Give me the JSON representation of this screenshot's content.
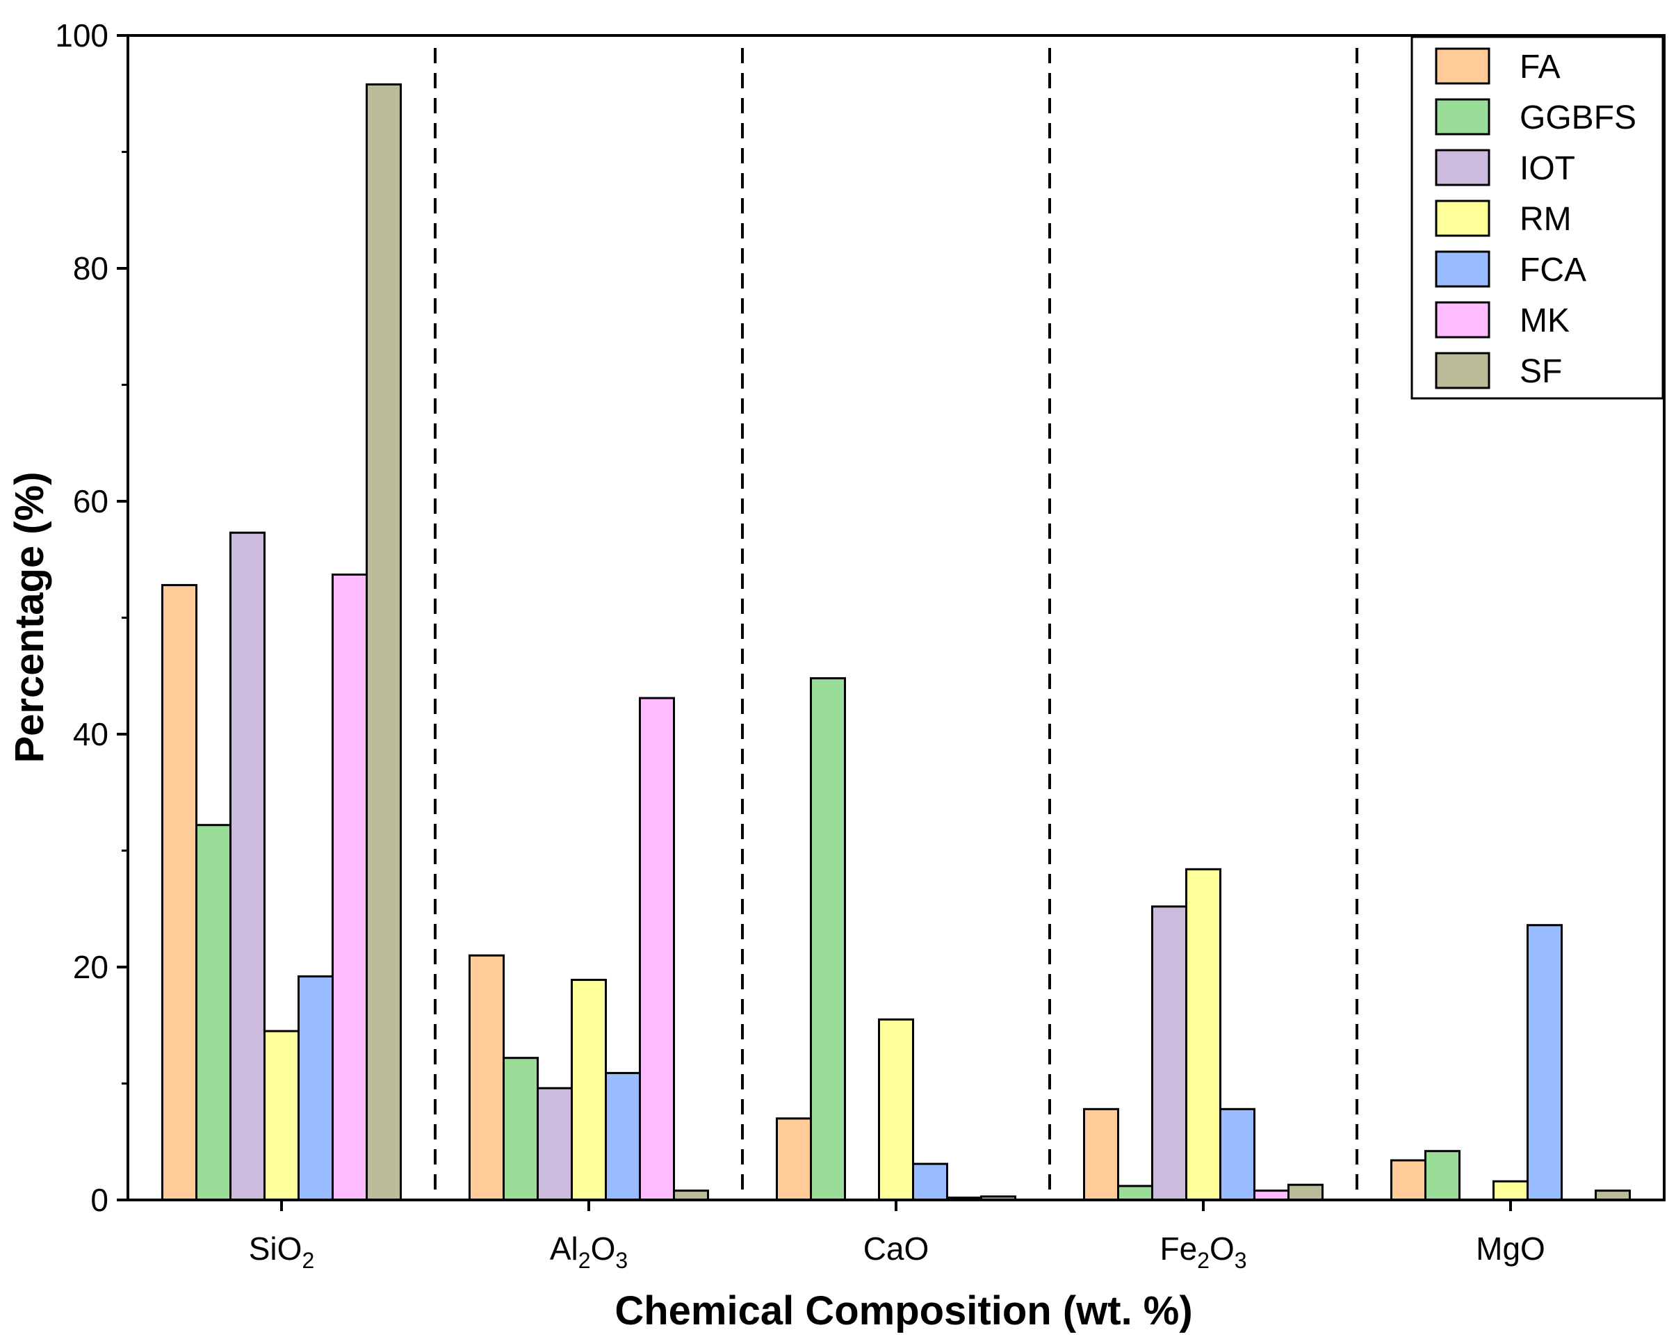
{
  "chart_data": {
    "type": "bar",
    "title": "",
    "xlabel": "Chemical Composition (wt. %)",
    "ylabel": "Percentage (%)",
    "ylim": [
      0,
      100
    ],
    "yticks": [
      0,
      20,
      40,
      60,
      80,
      100
    ],
    "grid": false,
    "legend_position": "top-right",
    "separators": "dashed vertical lines between categories",
    "categories": [
      {
        "base": "SiO",
        "sub": "2",
        "label": "SiO2"
      },
      {
        "base": "Al",
        "sub": "2",
        "mid": "O",
        "sub2": "3",
        "label": "Al2O3"
      },
      {
        "base": "CaO",
        "label": "CaO"
      },
      {
        "base": "Fe",
        "sub": "2",
        "mid": "O",
        "sub2": "3",
        "label": "Fe2O3"
      },
      {
        "base": "MgO",
        "label": "MgO"
      }
    ],
    "series": [
      {
        "name": "FA",
        "color": "#ffcc99",
        "values": [
          52.8,
          21.0,
          7.0,
          7.8,
          3.4
        ]
      },
      {
        "name": "GGBFS",
        "color": "#99dd99",
        "values": [
          32.2,
          12.2,
          44.8,
          1.2,
          4.2
        ]
      },
      {
        "name": "IOT",
        "color": "#ccbbdd",
        "values": [
          57.3,
          9.6,
          0,
          25.2,
          0
        ]
      },
      {
        "name": "RM",
        "color": "#ffff99",
        "values": [
          14.5,
          18.9,
          15.5,
          28.4,
          1.6
        ]
      },
      {
        "name": "FCA",
        "color": "#99bbff",
        "values": [
          19.2,
          10.9,
          3.1,
          7.8,
          23.6
        ]
      },
      {
        "name": "MK",
        "color": "#ffbbff",
        "values": [
          53.7,
          43.1,
          0.2,
          0.8,
          0
        ]
      },
      {
        "name": "SF",
        "color": "#bbbb99",
        "values": [
          95.8,
          0.8,
          0.3,
          1.3,
          0.8
        ]
      }
    ]
  }
}
